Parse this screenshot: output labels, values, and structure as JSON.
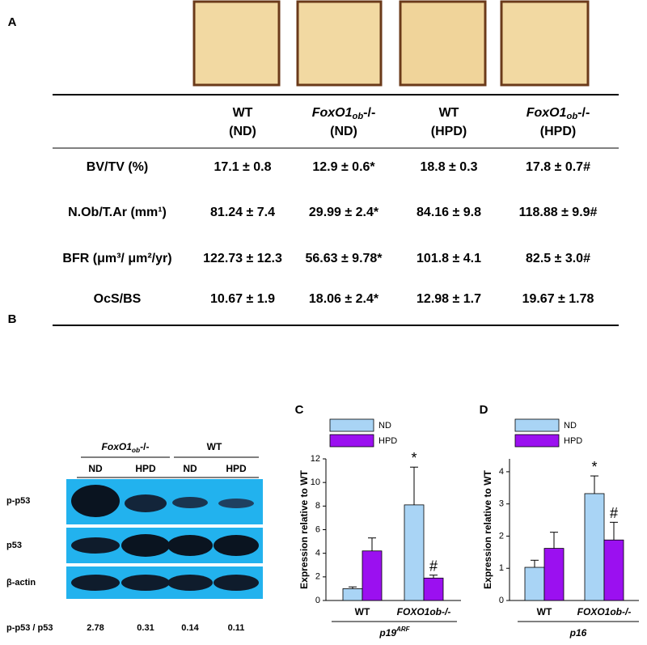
{
  "panel_labels": [
    "A",
    "B",
    "C",
    "D"
  ],
  "table": {
    "headers": [
      {
        "line1": "WT",
        "line2": "(ND)"
      },
      {
        "gene": "FoxO1",
        "sub": "ob",
        "suffix": "-/-",
        "line2": "(ND)"
      },
      {
        "line1": "WT",
        "line2": "(HPD)"
      },
      {
        "gene": "FoxO1",
        "sub": "ob",
        "suffix": "-/-",
        "line2": "(HPD)"
      }
    ],
    "rows": [
      {
        "label": "BV/TV (%)",
        "cells": [
          "17.1 ± 0.8",
          "12.9 ± 0.6*",
          "18.8 ± 0.3",
          "17.8 ± 0.7#"
        ]
      },
      {
        "label": "N.Ob/T.Ar (mm¹)",
        "cells": [
          "81.24 ± 7.4",
          "29.99 ± 2.4*",
          "84.16 ± 9.8",
          "118.88 ± 9.9#"
        ]
      },
      {
        "label": "BFR (μm³/ μm²/yr)",
        "cells": [
          "122.73 ± 12.3",
          "56.63 ± 9.78*",
          "101.8 ± 4.1",
          "82.5 ± 3.0#"
        ]
      },
      {
        "label": "OcS/BS",
        "cells": [
          "10.67 ± 1.9",
          "18.06 ± 2.4*",
          "12.98 ± 1.7",
          "19.67 ± 1.78"
        ]
      }
    ]
  },
  "blot": {
    "groups": [
      {
        "gene": "FoxO1",
        "sub": "ob",
        "suffix": "-/-"
      },
      {
        "line1": "WT"
      }
    ],
    "lanes": [
      "ND",
      "HPD",
      "ND",
      "HPD"
    ],
    "rows": [
      "p-p53",
      "p53",
      "β-actin"
    ],
    "ratio_label": "p-p53 / p53",
    "ratios": [
      "2.78",
      "0.31",
      "0.14",
      "0.11"
    ]
  },
  "chart_data": [
    {
      "type": "bar",
      "y_label": "Expression relative to WT",
      "categories": [
        "WT",
        "FOXO1ob-/-"
      ],
      "gene": "p19",
      "gene_sup": "ARF",
      "ylim": [
        0,
        12
      ],
      "yticks": [
        0,
        2,
        4,
        6,
        8,
        10,
        12
      ],
      "series": [
        {
          "name": "ND",
          "color": "#a9d4f5",
          "values": [
            1.0,
            8.1
          ],
          "errors": [
            0.15,
            3.2
          ],
          "annotations": [
            null,
            "*"
          ]
        },
        {
          "name": "HPD",
          "color": "#9b10f0",
          "values": [
            4.2,
            1.9
          ],
          "errors": [
            1.1,
            0.25
          ],
          "annotations": [
            null,
            "#"
          ]
        }
      ]
    },
    {
      "type": "bar",
      "y_label": "Expression relative to WT",
      "categories": [
        "WT",
        "FOXO1ob-/-"
      ],
      "gene": "p16",
      "ylim": [
        0,
        4.4
      ],
      "yticks": [
        0,
        1,
        2,
        3,
        4
      ],
      "series": [
        {
          "name": "ND",
          "color": "#a9d4f5",
          "values": [
            1.03,
            3.32
          ],
          "errors": [
            0.22,
            0.55
          ],
          "annotations": [
            null,
            "*"
          ]
        },
        {
          "name": "HPD",
          "color": "#9b10f0",
          "values": [
            1.62,
            1.88
          ],
          "errors": [
            0.5,
            0.55
          ],
          "annotations": [
            null,
            "#"
          ]
        }
      ]
    }
  ]
}
